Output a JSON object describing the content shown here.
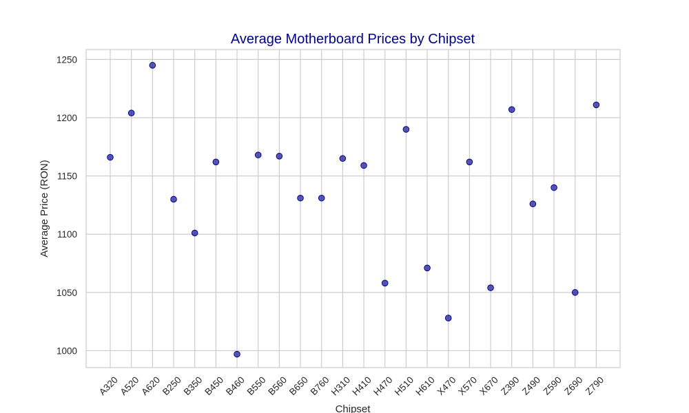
{
  "chart_data": {
    "type": "scatter",
    "title": "Average Motherboard Prices by Chipset",
    "xlabel": "Chipset",
    "ylabel": "Average Price (RON)",
    "categories": [
      "A320",
      "A520",
      "A620",
      "B250",
      "B350",
      "B450",
      "B460",
      "B550",
      "B560",
      "B650",
      "B760",
      "H310",
      "H410",
      "H470",
      "H510",
      "H610",
      "X470",
      "X570",
      "X670",
      "Z390",
      "Z490",
      "Z590",
      "Z690",
      "Z790"
    ],
    "values": [
      1166,
      1204,
      1245,
      1130,
      1101,
      1162,
      997,
      1168,
      1167,
      1131,
      1131,
      1165,
      1159,
      1058,
      1190,
      1071,
      1028,
      1162,
      1054,
      1207,
      1126,
      1140,
      1050,
      1211
    ],
    "yticks": [
      1000,
      1050,
      1100,
      1150,
      1200,
      1250
    ],
    "ylim": [
      985.5,
      1258.5
    ],
    "grid": true,
    "marker_color": "#00008b"
  }
}
